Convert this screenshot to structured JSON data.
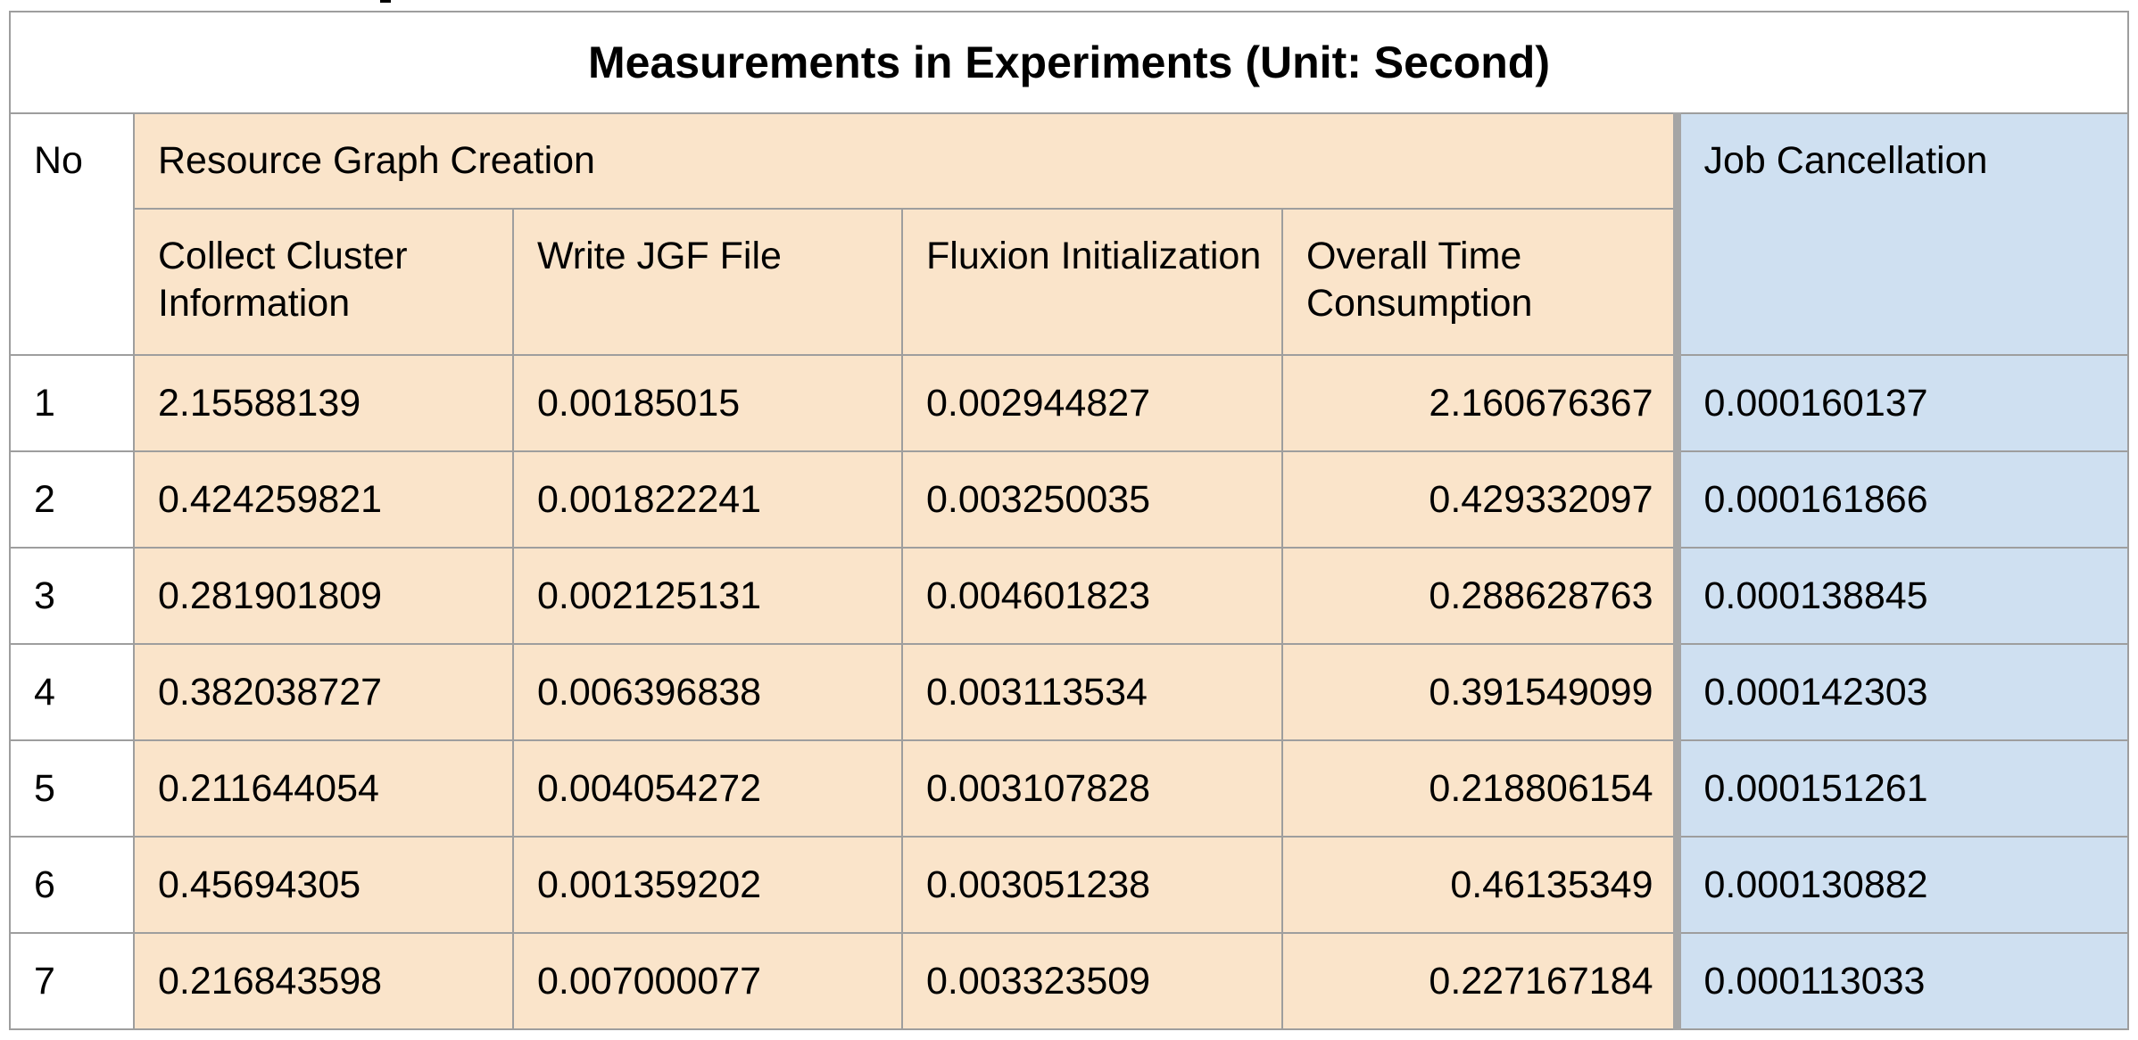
{
  "title": "Measurements in Experiments (Unit: Second)",
  "headers": {
    "no": "No",
    "group_resource": "Resource Graph Creation",
    "collect": "Collect Cluster Information",
    "write_jgf": "Write JGF File",
    "fluxion": "Fluxion Initialization",
    "overall": "Overall Time Consumption",
    "job_cancel": "Job Cancellation"
  },
  "rows": [
    {
      "no": "1",
      "collect": "2.15588139",
      "write": "0.00185015",
      "fluxion": "0.002944827",
      "overall": "2.160676367",
      "cancel": "0.000160137"
    },
    {
      "no": "2",
      "collect": "0.424259821",
      "write": "0.001822241",
      "fluxion": "0.003250035",
      "overall": "0.429332097",
      "cancel": "0.000161866"
    },
    {
      "no": "3",
      "collect": "0.281901809",
      "write": "0.002125131",
      "fluxion": "0.004601823",
      "overall": "0.288628763",
      "cancel": "0.000138845"
    },
    {
      "no": "4",
      "collect": "0.382038727",
      "write": "0.006396838",
      "fluxion": "0.003113534",
      "overall": "0.391549099",
      "cancel": "0.000142303"
    },
    {
      "no": "5",
      "collect": "0.211644054",
      "write": "0.004054272",
      "fluxion": "0.003107828",
      "overall": "0.218806154",
      "cancel": "0.000151261"
    },
    {
      "no": "6",
      "collect": "0.45694305",
      "write": "0.001359202",
      "fluxion": "0.003051238",
      "overall": "0.46135349",
      "cancel": "0.000130882"
    },
    {
      "no": "7",
      "collect": "0.216843598",
      "write": "0.007000077",
      "fluxion": "0.003323509",
      "overall": "0.227167184",
      "cancel": "0.000113033"
    }
  ],
  "colors": {
    "resource_group_fill": "#fae4ca",
    "job_cancel_fill": "#cfe0f1",
    "border": "#9e9e9e"
  }
}
